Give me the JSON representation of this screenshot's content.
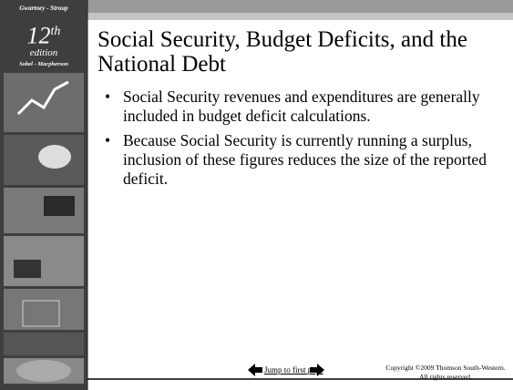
{
  "sidebar": {
    "authors_top": "Gwartney - Stroup",
    "edition_number": "12",
    "edition_suffix": "th",
    "edition_word": "edition",
    "authors_bottom": "Sobel - Macpherson"
  },
  "slide": {
    "title": "Social Security, Budget Deficits, and the National Debt",
    "bullets": [
      "Social Security revenues and expenditures are generally included in budget deficit calculations.",
      "Because Social Security is currently running a surplus, inclusion of these figures reduces the size of the reported deficit."
    ]
  },
  "footer": {
    "link": "Jump to first page",
    "copyright": [
      "Copyright ©2009  Thomson South-Western.",
      "All rights reserved."
    ]
  }
}
